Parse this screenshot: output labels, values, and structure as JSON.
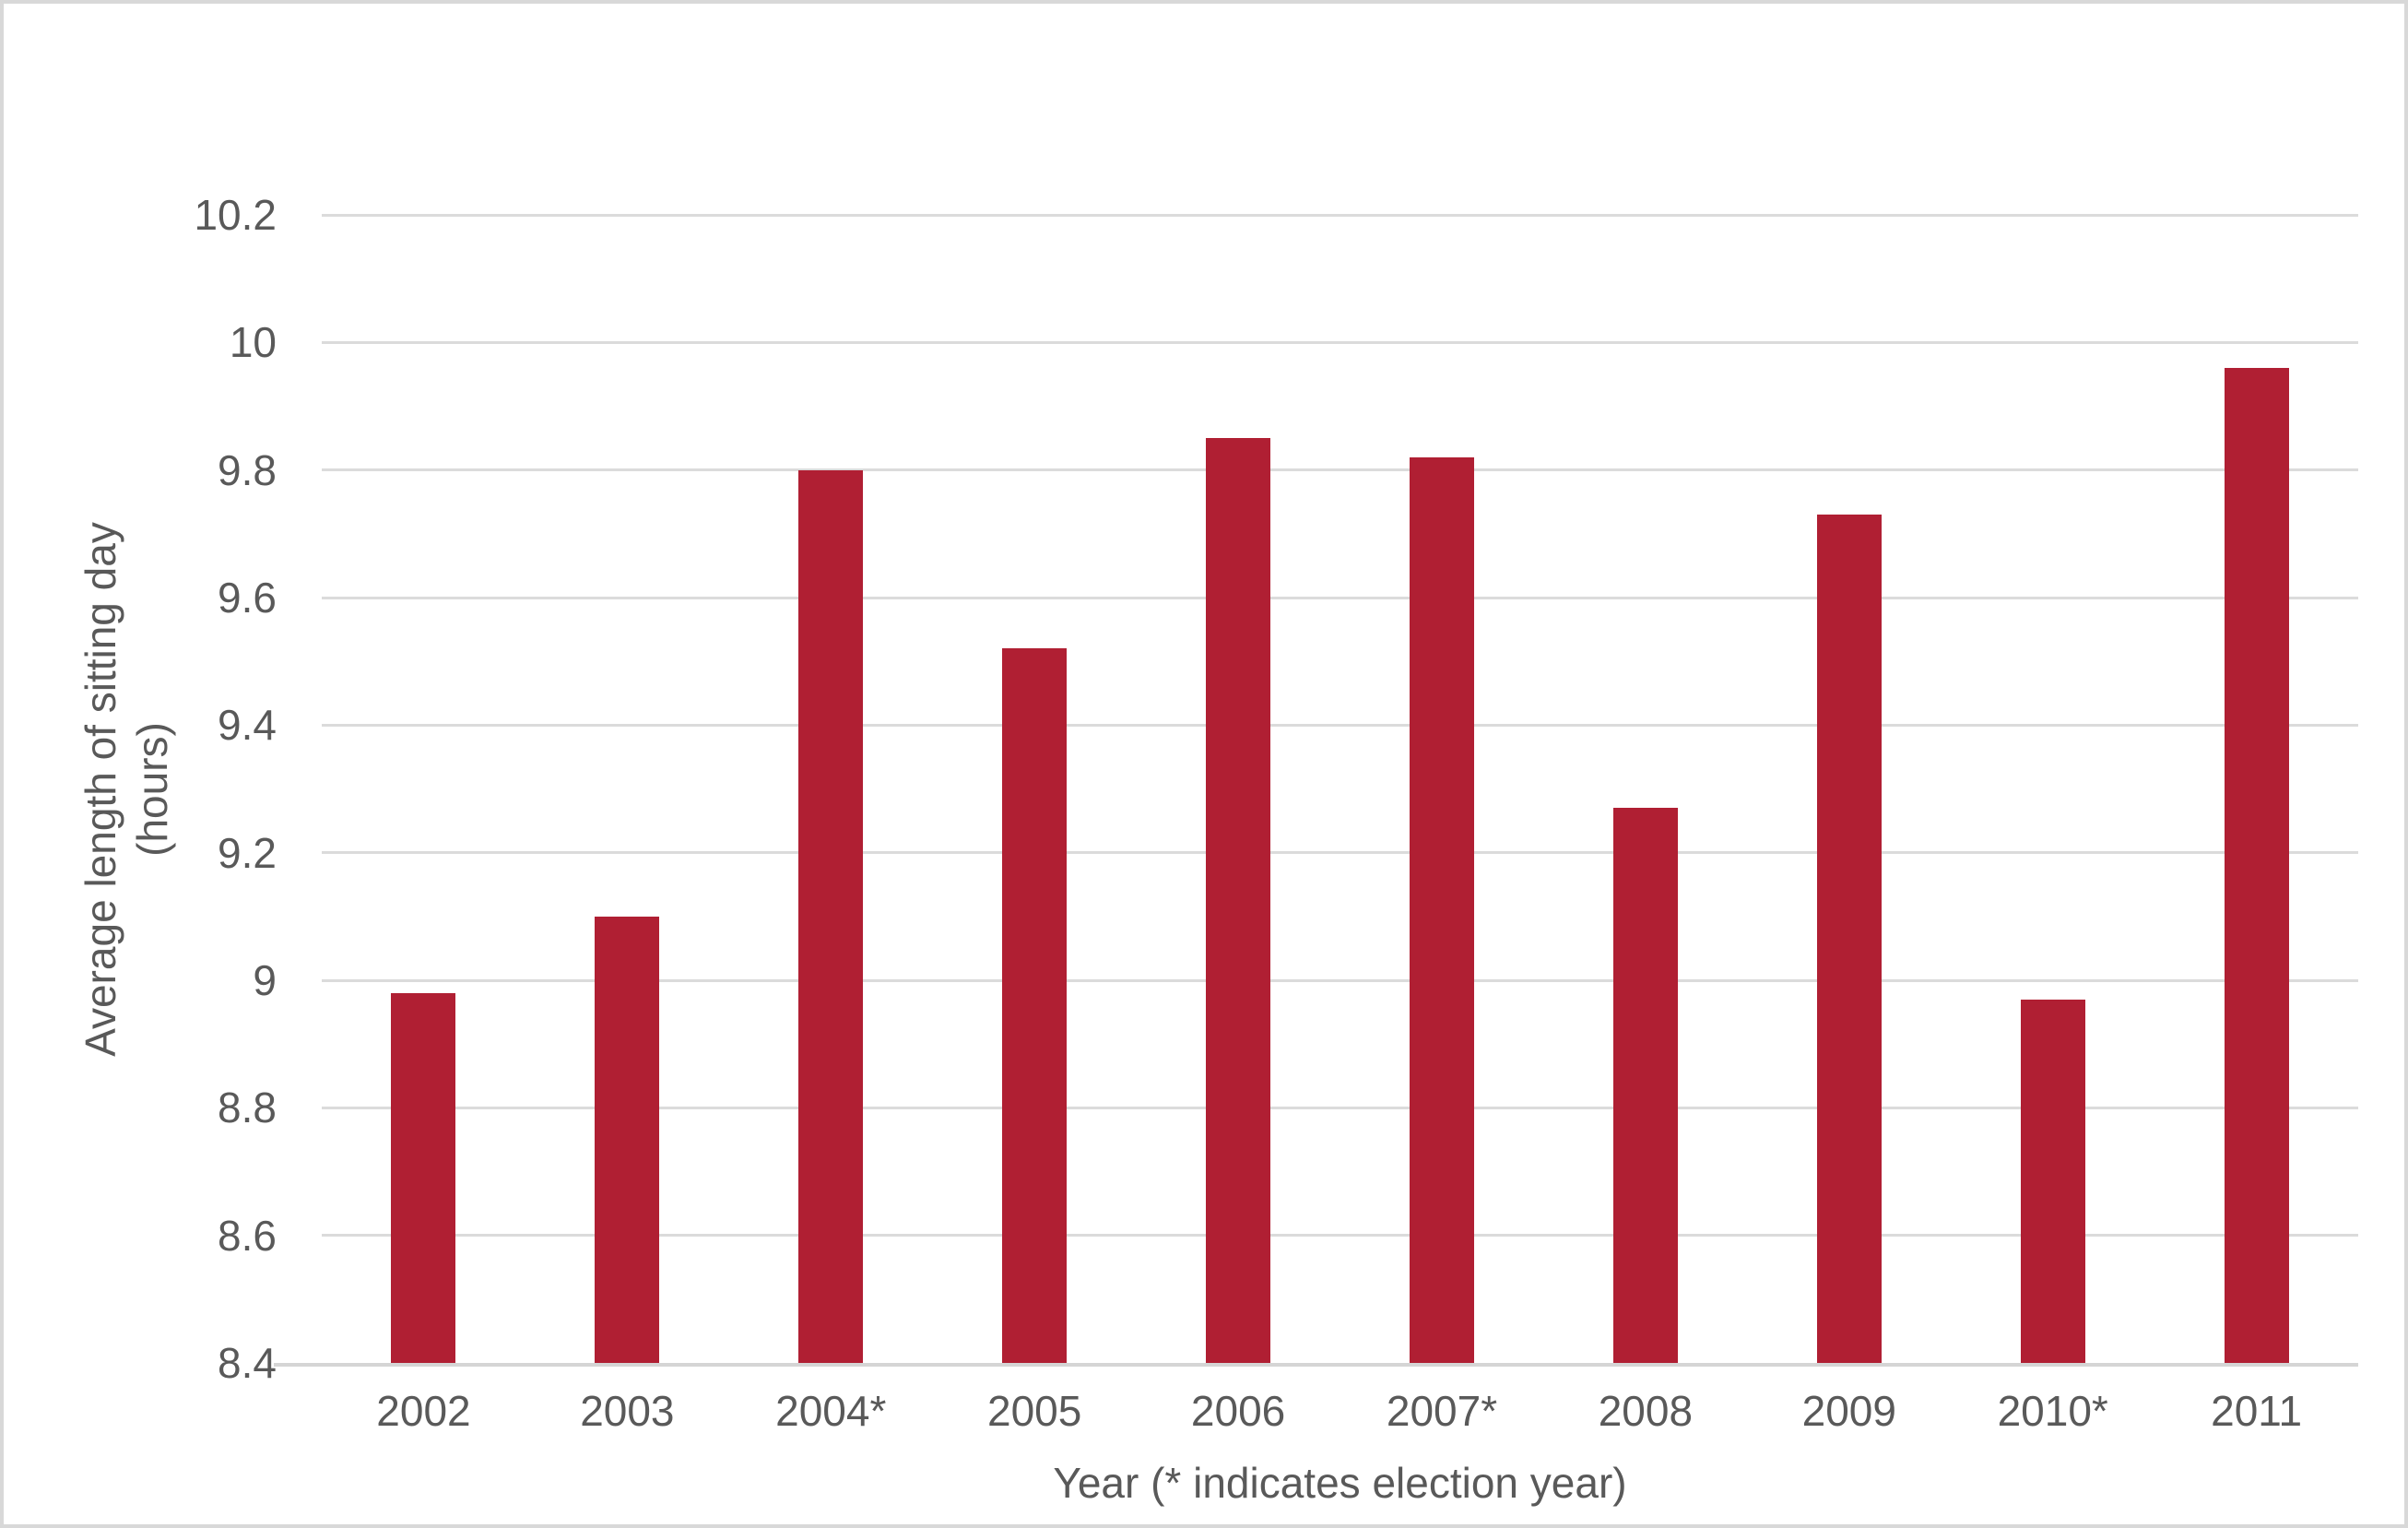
{
  "chart_data": {
    "type": "bar",
    "title": "",
    "categories": [
      "2002",
      "2003",
      "2004*",
      "2005",
      "2006",
      "2007*",
      "2008",
      "2009",
      "2010*",
      "2011"
    ],
    "values": [
      8.98,
      9.1,
      9.8,
      9.52,
      9.85,
      9.82,
      9.27,
      9.73,
      8.97,
      9.96
    ],
    "xlabel": "Year (* indicates election year)",
    "ylabel_line1": "Average length of sitting day",
    "ylabel_line2": "(hours)",
    "ylim": [
      8.4,
      10.2
    ],
    "ytick_step": 0.2,
    "yticks": [
      8.4,
      8.6,
      8.8,
      9,
      9.2,
      9.4,
      9.6,
      9.8,
      10,
      10.2
    ],
    "grid": true,
    "legend": "none",
    "colors": {
      "bar": "#B01F33",
      "gridline": "#DBDBDB",
      "axis_line": "#D5D5D5",
      "text": "#595959",
      "figure_border": "#D8D8D8",
      "background": "#FFFFFF"
    }
  }
}
